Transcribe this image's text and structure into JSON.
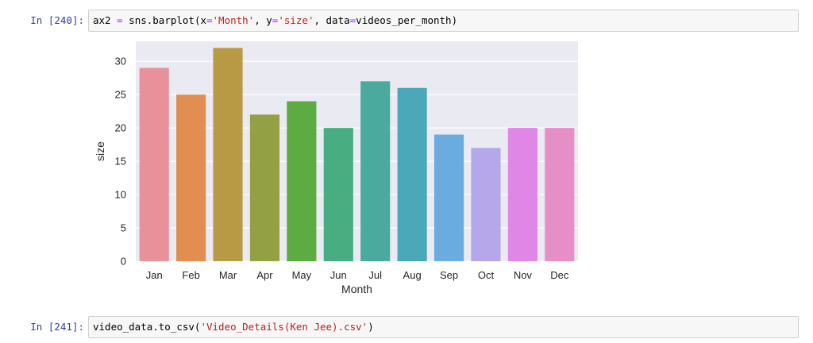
{
  "cells": [
    {
      "prompt": "In [240]:",
      "code_parts": [
        {
          "text": "ax2 ",
          "kind": "plain"
        },
        {
          "text": "=",
          "kind": "op"
        },
        {
          "text": " sns.barplot(x",
          "kind": "plain"
        },
        {
          "text": "=",
          "kind": "op"
        },
        {
          "text": "'Month'",
          "kind": "str"
        },
        {
          "text": ", y",
          "kind": "plain"
        },
        {
          "text": "=",
          "kind": "op"
        },
        {
          "text": "'size'",
          "kind": "str"
        },
        {
          "text": ", data",
          "kind": "plain"
        },
        {
          "text": "=",
          "kind": "op"
        },
        {
          "text": "videos_per_month)",
          "kind": "plain"
        }
      ]
    },
    {
      "prompt": "In [241]:",
      "code_parts": [
        {
          "text": "video_data.to_csv(",
          "kind": "plain"
        },
        {
          "text": "'Video_Details(Ken Jee).csv'",
          "kind": "str"
        },
        {
          "text": ")",
          "kind": "plain"
        }
      ]
    }
  ],
  "chart_data": {
    "type": "bar",
    "categories": [
      "Jan",
      "Feb",
      "Mar",
      "Apr",
      "May",
      "Jun",
      "Jul",
      "Aug",
      "Sep",
      "Oct",
      "Nov",
      "Dec"
    ],
    "values": [
      29,
      25,
      32,
      22,
      24,
      20,
      27,
      26,
      19,
      17,
      20,
      20
    ],
    "colors": [
      "#e8919b",
      "#e08f51",
      "#b89a44",
      "#93a043",
      "#5cac41",
      "#48ae82",
      "#4aaa9e",
      "#4aa8b8",
      "#6aabe0",
      "#b6a6ea",
      "#df86e6",
      "#e68fc6"
    ],
    "xlabel": "Month",
    "ylabel": "size",
    "ylim": [
      0,
      33
    ],
    "yticks": [
      0,
      5,
      10,
      15,
      20,
      25,
      30
    ],
    "grid": true,
    "background": "#eaeaf2"
  }
}
